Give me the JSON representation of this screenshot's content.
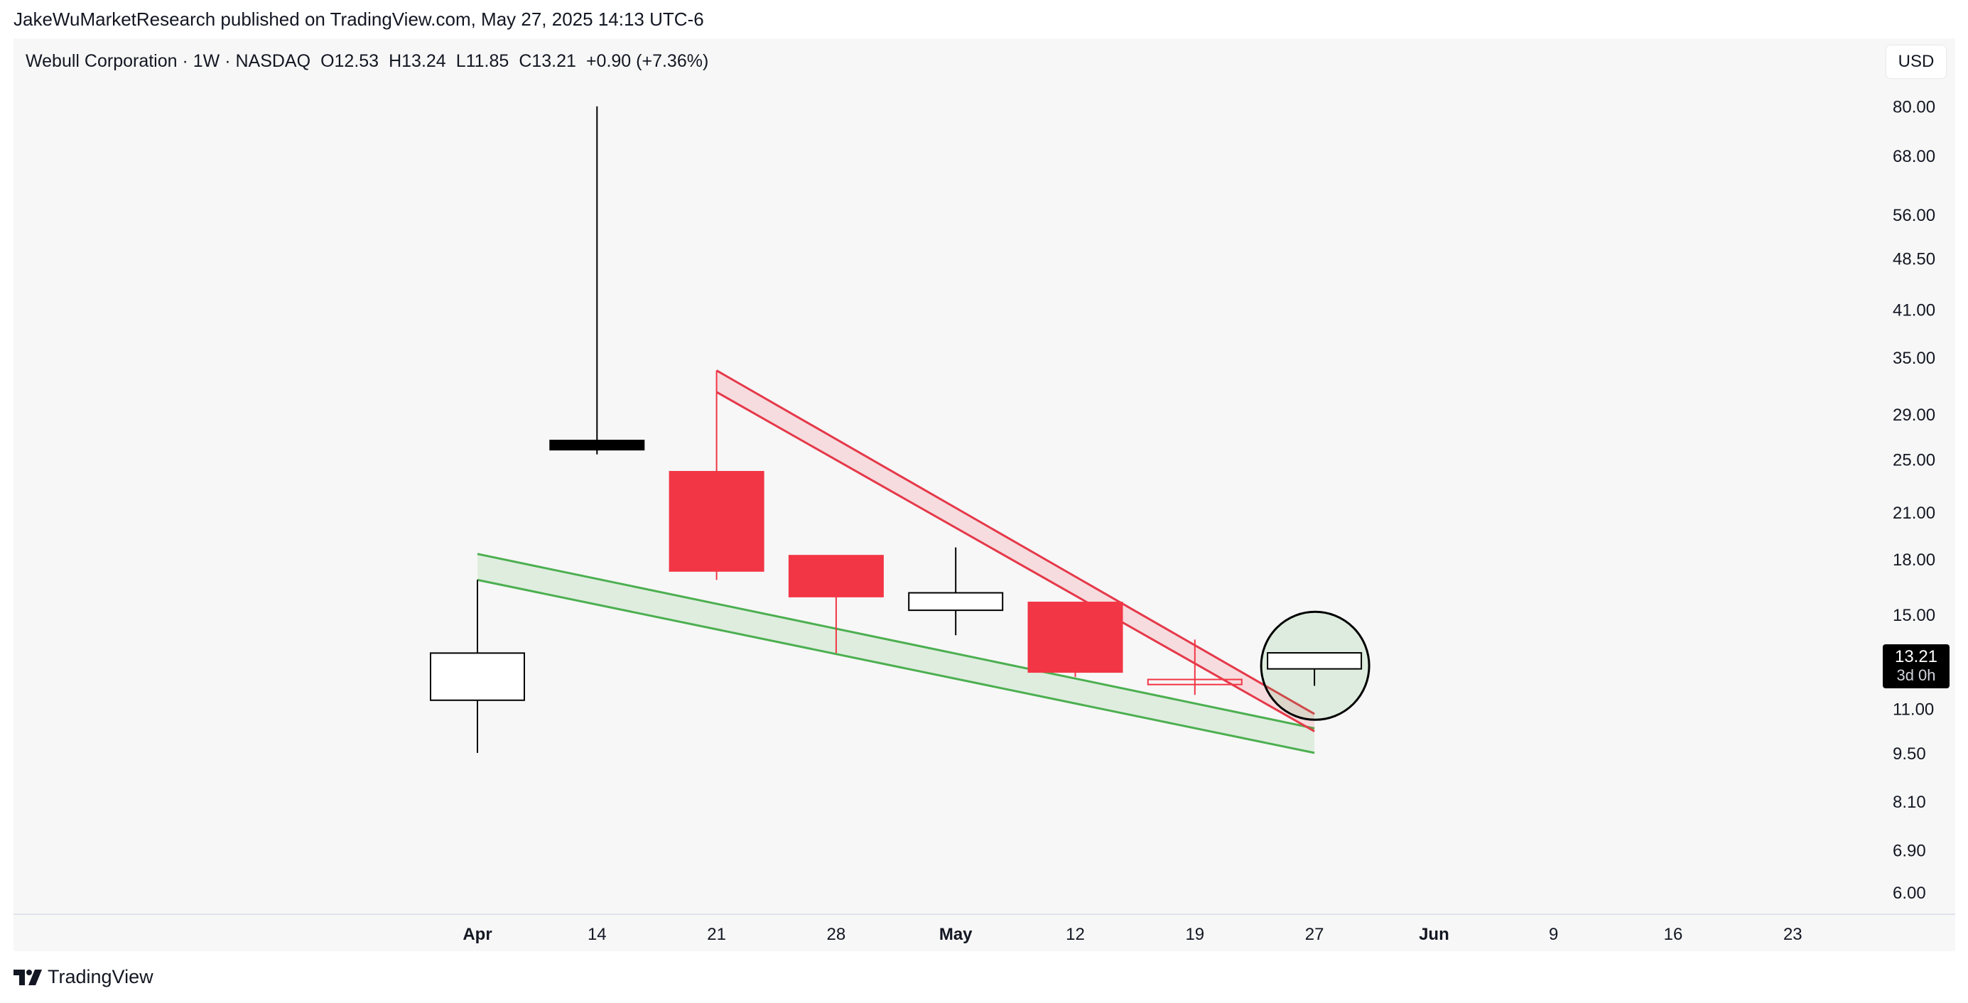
{
  "publisher": "JakeWuMarketResearch published on TradingView.com, May 27, 2025 14:13 UTC-6",
  "symbol_line": {
    "name": "Webull Corporation · 1W · NASDAQ",
    "open": "O12.53",
    "high": "H13.24",
    "low": "L11.85",
    "close": "C13.21",
    "change": "+0.90 (+7.36%)"
  },
  "currency_label": "USD",
  "price_badge": {
    "price": "13.21",
    "countdown": "3d 0h"
  },
  "brand": "TradingView",
  "colors": {
    "bear": "#f23645",
    "bull_fill": "#ffffff",
    "spike": "#000000",
    "support": "#4caf50",
    "resistance": "#e5394a"
  },
  "chart_data": {
    "type": "candlestick",
    "y_scale": "log",
    "ylim": [
      5.85,
      83
    ],
    "y_ticks": [
      "80.00",
      "68.00",
      "56.00",
      "48.50",
      "41.00",
      "35.00",
      "29.00",
      "25.00",
      "21.00",
      "18.00",
      "15.00",
      "11.00",
      "9.50",
      "8.10",
      "6.90",
      "6.00"
    ],
    "x_ticks": [
      {
        "label": "Apr",
        "bold": true
      },
      {
        "label": "14",
        "bold": false
      },
      {
        "label": "21",
        "bold": false
      },
      {
        "label": "28",
        "bold": false
      },
      {
        "label": "May",
        "bold": true
      },
      {
        "label": "12",
        "bold": false
      },
      {
        "label": "19",
        "bold": false
      },
      {
        "label": "27",
        "bold": false
      },
      {
        "label": "Jun",
        "bold": true
      },
      {
        "label": "9",
        "bold": false
      },
      {
        "label": "16",
        "bold": false
      },
      {
        "label": "23",
        "bold": false
      }
    ],
    "candles": [
      {
        "week": "Apr",
        "open": 11.3,
        "high": 16.8,
        "low": 9.5,
        "close": 13.2,
        "style": "bull"
      },
      {
        "week": "14",
        "open": 26.6,
        "high": 80.0,
        "low": 25.4,
        "close": 25.8,
        "style": "spike"
      },
      {
        "week": "21",
        "open": 24.0,
        "high": 33.5,
        "low": 16.8,
        "close": 17.3,
        "style": "bear"
      },
      {
        "week": "28",
        "open": 18.2,
        "high": 18.2,
        "low": 13.2,
        "close": 15.9,
        "style": "bear"
      },
      {
        "week": "May",
        "open": 15.2,
        "high": 18.7,
        "low": 14.0,
        "close": 16.1,
        "style": "bull"
      },
      {
        "week": "12",
        "open": 15.6,
        "high": 15.6,
        "low": 12.2,
        "close": 12.4,
        "style": "bear"
      },
      {
        "week": "19",
        "open": 12.1,
        "high": 13.8,
        "low": 11.5,
        "close": 11.9,
        "style": "bear-hollow"
      },
      {
        "week": "27",
        "open": 12.53,
        "high": 13.24,
        "low": 11.85,
        "close": 13.21,
        "style": "bull"
      }
    ],
    "support_channel": {
      "upper": [
        {
          "week": "Apr",
          "price": 18.3
        },
        {
          "week": "27",
          "price": 10.3
        }
      ],
      "lower": [
        {
          "week": "Apr",
          "price": 16.8
        },
        {
          "week": "27",
          "price": 9.5
        }
      ]
    },
    "resistance_channel": {
      "upper": [
        {
          "week": "21",
          "price": 33.5
        },
        {
          "week": "27",
          "price": 10.8
        }
      ],
      "lower": [
        {
          "week": "21",
          "price": 31.2
        },
        {
          "week": "27",
          "price": 10.2
        }
      ]
    },
    "highlight_circle": {
      "week": "27",
      "price": 12.6
    }
  }
}
